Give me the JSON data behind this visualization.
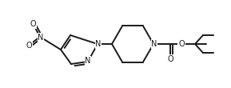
{
  "bg_color": "#ffffff",
  "line_color": "#1a1a1a",
  "line_width": 1.4,
  "font_size": 7.0,
  "figsize": [
    2.89,
    1.1
  ],
  "dpi": 100,
  "xlim": [
    0,
    289
  ],
  "ylim": [
    0,
    110
  ]
}
